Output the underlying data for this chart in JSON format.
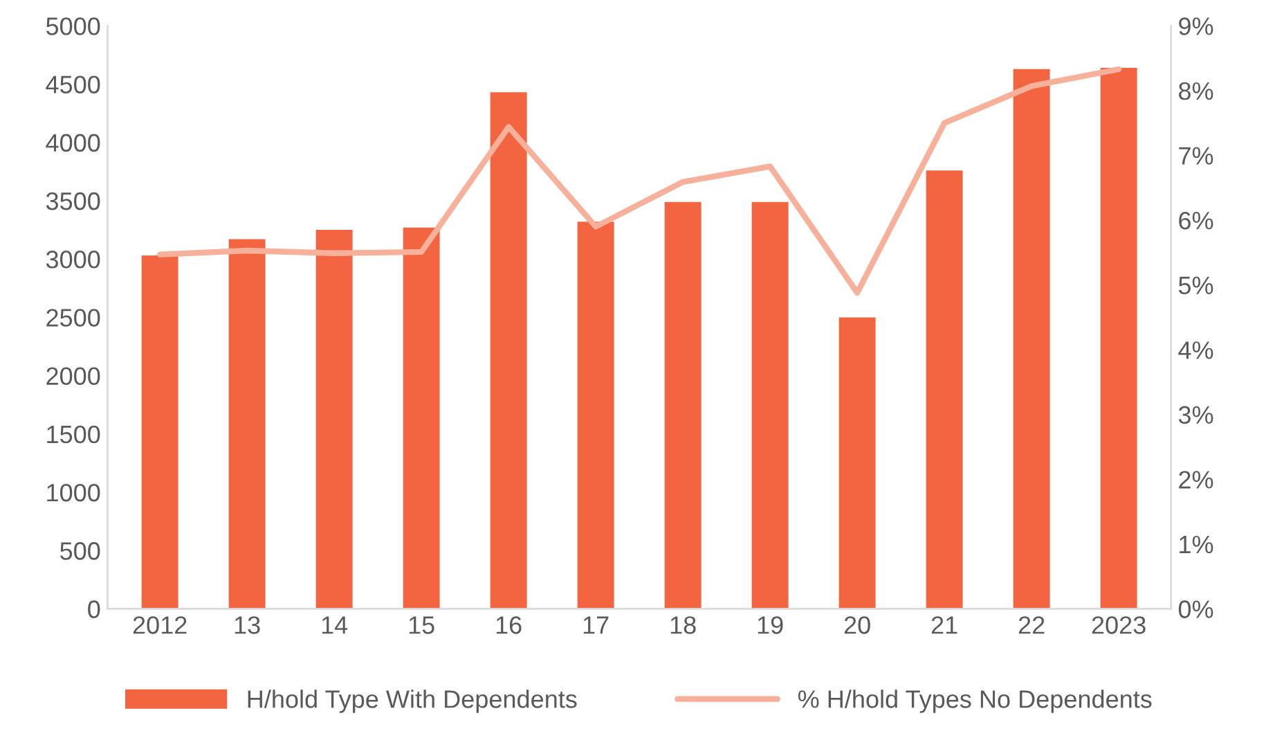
{
  "chart_data": {
    "type": "bar",
    "categories": [
      "2012",
      "13",
      "14",
      "15",
      "16",
      "17",
      "18",
      "19",
      "20",
      "21",
      "22",
      "2023"
    ],
    "series": [
      {
        "name": "H/hold Type With Dependents",
        "color": "#f26540",
        "values": [
          3030,
          3170,
          3250,
          3270,
          4430,
          3320,
          3490,
          3490,
          2500,
          3760,
          4630,
          4640
        ]
      },
      {
        "name": "% H/hold Types No Dependents",
        "color": "#f7b09a",
        "type": "line",
        "axis": "y2",
        "values": [
          5.47,
          5.53,
          5.49,
          5.51,
          7.44,
          5.9,
          6.59,
          6.83,
          4.88,
          7.5,
          8.07,
          8.33
        ]
      }
    ],
    "ylim": [
      0,
      5000
    ],
    "yticks": [
      0,
      500,
      1000,
      1500,
      2000,
      2500,
      3000,
      3500,
      4000,
      4500,
      5000
    ],
    "y2lim": [
      0,
      9
    ],
    "y2ticks": [
      {
        "value": 0,
        "label": "0%"
      },
      {
        "value": 1,
        "label": "1%"
      },
      {
        "value": 2,
        "label": "2%"
      },
      {
        "value": 3,
        "label": "3%"
      },
      {
        "value": 4,
        "label": "4%"
      },
      {
        "value": 5,
        "label": "5%"
      },
      {
        "value": 6,
        "label": "6%"
      },
      {
        "value": 7,
        "label": "7%"
      },
      {
        "value": 8,
        "label": "8%"
      },
      {
        "value": 9,
        "label": "9%"
      }
    ],
    "legend": "bottom"
  }
}
